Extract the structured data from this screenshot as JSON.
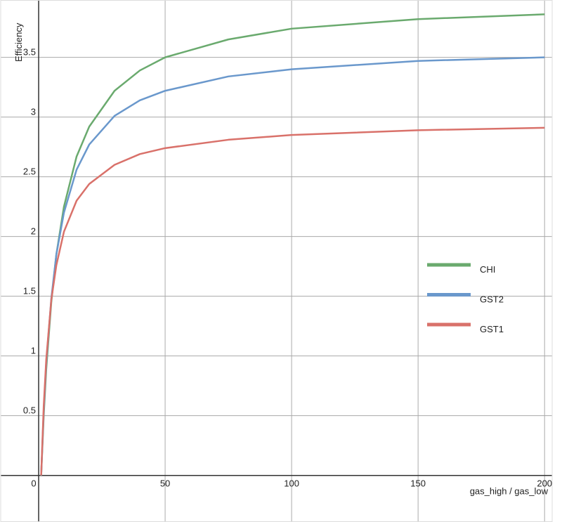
{
  "chart_data": {
    "type": "line",
    "x_label": "gas_high / gas_low",
    "y_label": "Efficiency",
    "x": [
      1,
      2,
      3,
      5,
      7,
      10,
      15,
      20,
      30,
      40,
      50,
      75,
      100,
      150,
      200
    ],
    "series": [
      {
        "name": "CHI",
        "color": "#6aaa6e",
        "values": [
          0,
          0.5,
          0.89,
          1.45,
          1.85,
          2.25,
          2.67,
          2.92,
          3.22,
          3.39,
          3.5,
          3.65,
          3.74,
          3.82,
          3.86
        ]
      },
      {
        "name": "GST2",
        "color": "#6a98cc",
        "values": [
          0,
          0.54,
          0.94,
          1.48,
          1.85,
          2.2,
          2.56,
          2.77,
          3.01,
          3.14,
          3.22,
          3.34,
          3.4,
          3.47,
          3.5
        ]
      },
      {
        "name": "GST1",
        "color": "#d9716a",
        "values": [
          0,
          0.58,
          0.97,
          1.47,
          1.76,
          2.04,
          2.3,
          2.44,
          2.6,
          2.69,
          2.74,
          2.81,
          2.85,
          2.89,
          2.91
        ]
      }
    ],
    "xlim": [
      -15,
      203
    ],
    "ylim": [
      -0.39,
      3.98
    ],
    "xticks": [
      0,
      50,
      100,
      150,
      200
    ],
    "yticks": [
      0.5,
      1,
      1.5,
      2,
      2.5,
      3,
      3.5
    ],
    "grid": true,
    "legend": "right"
  }
}
